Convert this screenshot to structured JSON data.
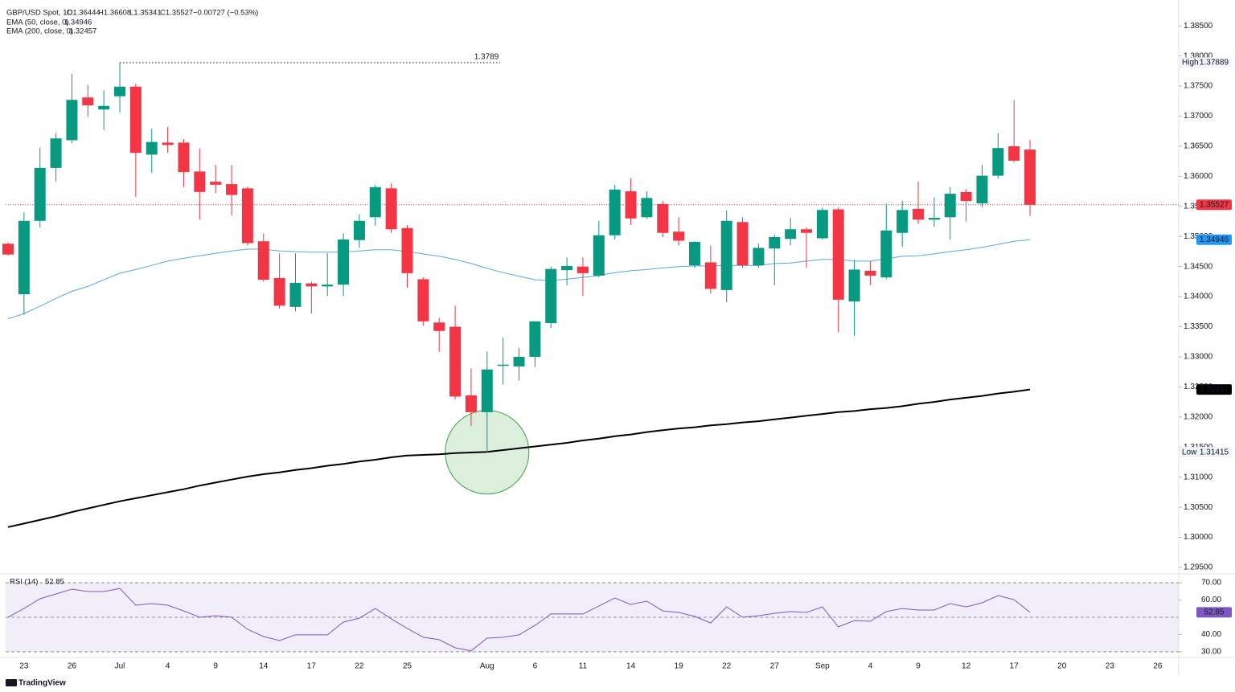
{
  "chart_data": {
    "type": "candlestick",
    "header": {
      "symbol": "GBP/USD Spot, 1D",
      "fields": [
        "O1.36444",
        "H1.36608",
        "L1.35341",
        "C1.35527",
        "−0.00727 (−0.53%)"
      ]
    },
    "categories": [
      null,
      "23",
      null,
      null,
      "26",
      null,
      null,
      "Jul",
      null,
      null,
      "4",
      null,
      null,
      "9",
      null,
      null,
      "14",
      null,
      null,
      "17",
      null,
      null,
      "22",
      null,
      null,
      "25",
      null,
      null,
      null,
      null,
      "Aug",
      null,
      null,
      "6",
      null,
      null,
      "11",
      null,
      null,
      "14",
      null,
      null,
      "19",
      null,
      null,
      "22",
      null,
      null,
      "27",
      null,
      null,
      "Sep",
      null,
      null,
      "4",
      null,
      null,
      "9",
      null,
      null,
      "12",
      null,
      null,
      "17",
      null,
      null,
      "20",
      null,
      null,
      "23",
      null,
      null,
      "26",
      null
    ],
    "open": [
      1.3488,
      1.3404,
      1.3526,
      1.3614,
      1.366,
      1.3731,
      1.3711,
      1.3733,
      1.3749,
      1.3636,
      1.3656,
      1.3656,
      1.3608,
      1.3591,
      1.3587,
      1.358,
      1.3492,
      1.3431,
      1.3383,
      1.3422,
      1.3417,
      1.342,
      1.3494,
      1.3532,
      1.358,
      1.3514,
      1.3429,
      1.3357,
      1.335,
      1.3236,
      1.3208,
      1.3285,
      1.3284,
      1.33,
      1.3356,
      1.3444,
      1.345,
      1.3435,
      1.3502,
      1.3575,
      1.3532,
      1.3554,
      1.3508,
      1.3452,
      1.3457,
      1.3411,
      1.3524,
      1.3452,
      1.348,
      1.3496,
      1.3512,
      1.3497,
      1.3545,
      1.3392,
      1.3443,
      1.3432,
      1.3506,
      1.3546,
      1.3528,
      1.3532,
      1.3574,
      1.3555,
      1.3601,
      1.365,
      1.36444,
      null,
      null,
      null,
      null,
      null,
      null,
      null,
      null,
      null
    ],
    "high": [
      1.349,
      1.354,
      1.3648,
      1.3672,
      1.377,
      1.3752,
      1.3743,
      1.37889,
      1.3754,
      1.3679,
      1.3682,
      1.3662,
      1.3646,
      1.3619,
      1.3619,
      1.3583,
      1.3505,
      1.3472,
      1.3472,
      1.3425,
      1.3472,
      1.3505,
      1.3537,
      1.3586,
      1.3588,
      1.3519,
      1.3432,
      1.3365,
      1.3385,
      1.3281,
      1.3309,
      1.3332,
      1.3315,
      1.3359,
      1.345,
      1.3465,
      1.3465,
      1.3526,
      1.3586,
      1.3597,
      1.3575,
      1.3559,
      1.3532,
      1.3492,
      1.3485,
      1.3543,
      1.3532,
      1.3488,
      1.3503,
      1.3531,
      1.3515,
      1.3548,
      1.3548,
      1.3461,
      1.3459,
      1.3555,
      1.3559,
      1.3591,
      1.3565,
      1.3582,
      1.3579,
      1.3619,
      1.3672,
      1.3727,
      1.36608,
      null,
      null,
      null,
      null,
      null,
      null,
      null,
      null,
      null
    ],
    "low": [
      1.3468,
      1.337,
      1.3515,
      1.3592,
      1.3655,
      1.3699,
      1.3677,
      1.3706,
      1.3566,
      1.3606,
      1.3639,
      1.3582,
      1.3528,
      1.3572,
      1.3535,
      1.3485,
      1.3425,
      1.338,
      1.3376,
      1.3372,
      1.3401,
      1.3401,
      1.3481,
      1.3518,
      1.3506,
      1.3415,
      1.3352,
      1.3308,
      1.3229,
      1.3185,
      1.31415,
      1.3254,
      1.3261,
      1.3283,
      1.3348,
      1.3419,
      1.3401,
      1.3432,
      1.3495,
      1.3519,
      1.3529,
      1.3499,
      1.3485,
      1.3448,
      1.3405,
      1.3391,
      1.3448,
      1.3448,
      1.3419,
      1.3485,
      1.3448,
      1.3495,
      1.3341,
      1.3335,
      1.3419,
      1.3429,
      1.3483,
      1.3521,
      1.3516,
      1.3495,
      1.3525,
      1.3548,
      1.3596,
      1.3623,
      1.35341,
      null,
      null,
      null,
      null,
      null,
      null,
      null,
      null,
      null
    ],
    "close": [
      1.347,
      1.3526,
      1.3614,
      1.3663,
      1.3727,
      1.3718,
      1.3717,
      1.3749,
      1.3639,
      1.3657,
      1.3652,
      1.3607,
      1.3574,
      1.3586,
      1.3569,
      1.3489,
      1.3428,
      1.3385,
      1.3423,
      1.3417,
      1.342,
      1.3495,
      1.3526,
      1.3582,
      1.3512,
      1.3439,
      1.3359,
      1.3343,
      1.3234,
      1.3208,
      1.3279,
      1.3287,
      1.33,
      1.3359,
      1.3446,
      1.3451,
      1.3439,
      1.3502,
      1.3578,
      1.353,
      1.3564,
      1.3506,
      1.3493,
      1.3491,
      1.3413,
      1.3526,
      1.3452,
      1.3481,
      1.3499,
      1.3512,
      1.3506,
      1.3544,
      1.3395,
      1.3445,
      1.3435,
      1.351,
      1.3544,
      1.3528,
      1.3531,
      1.3571,
      1.3559,
      1.3601,
      1.3647,
      1.3626,
      1.35527,
      null,
      null,
      null,
      null,
      null,
      null,
      null,
      null,
      null
    ],
    "up_color": "#089981",
    "down_color": "#f23645",
    "overlays": [
      {
        "name": "EMA (50, close, 0)",
        "color": "#5aa6e0",
        "values": [
          1.3363,
          1.3372,
          1.3384,
          1.3397,
          1.3409,
          1.3417,
          1.3428,
          1.3439,
          1.3445,
          1.3452,
          1.3459,
          1.3464,
          1.3468,
          1.3472,
          1.3476,
          1.3479,
          1.3479,
          1.3476,
          1.3475,
          1.3474,
          1.3474,
          1.3474,
          1.3476,
          1.3478,
          1.3478,
          1.3475,
          1.3471,
          1.3467,
          1.3462,
          1.3455,
          1.3447,
          1.344,
          1.3434,
          1.3428,
          1.3427,
          1.3429,
          1.3432,
          1.3435,
          1.344,
          1.3443,
          1.3445,
          1.3448,
          1.345,
          1.3451,
          1.3451,
          1.3452,
          1.3452,
          1.3452,
          1.3455,
          1.3456,
          1.3459,
          1.3462,
          1.3462,
          1.3459,
          1.3459,
          1.3463,
          1.3467,
          1.3468,
          1.3471,
          1.3475,
          1.3478,
          1.3482,
          1.3487,
          1.3492,
          1.34946,
          null,
          null,
          null,
          null,
          null,
          null,
          null,
          null,
          null
        ]
      },
      {
        "name": "EMA (200, close, 0)",
        "color": "#000000",
        "values": [
          1.3017,
          1.3023,
          1.3029,
          1.3035,
          1.3042,
          1.3048,
          1.3054,
          1.306,
          1.3065,
          1.307,
          1.3075,
          1.308,
          1.3086,
          1.3091,
          1.3096,
          1.3101,
          1.3105,
          1.3108,
          1.3112,
          1.3115,
          1.3119,
          1.3122,
          1.3126,
          1.3129,
          1.3133,
          1.3136,
          1.3137,
          1.3138,
          1.314,
          1.3141,
          1.3142,
          1.3145,
          1.3148,
          1.3151,
          1.3154,
          1.3157,
          1.3161,
          1.3164,
          1.3168,
          1.3171,
          1.3175,
          1.3178,
          1.3181,
          1.3183,
          1.3186,
          1.3188,
          1.3191,
          1.3193,
          1.3196,
          1.3199,
          1.3202,
          1.3205,
          1.3208,
          1.321,
          1.3213,
          1.3215,
          1.3218,
          1.3222,
          1.3225,
          1.3229,
          1.3232,
          1.3235,
          1.3239,
          1.3242,
          1.32457,
          null,
          null,
          null,
          null,
          null,
          null,
          null,
          null,
          null
        ]
      }
    ],
    "ylim": [
      1.2942,
      1.3893
    ],
    "yticks": [
      {
        "value": 1.385,
        "label": "1.38500"
      },
      {
        "value": 1.38,
        "label": "1.38000"
      },
      {
        "value": 1.375,
        "label": "1.37500"
      },
      {
        "value": 1.37,
        "label": "1.37000"
      },
      {
        "value": 1.365,
        "label": "1.36500"
      },
      {
        "value": 1.36,
        "label": "1.36000"
      },
      {
        "value": 1.355,
        "label": "1.35500"
      },
      {
        "value": 1.35,
        "label": "1.35000"
      },
      {
        "value": 1.345,
        "label": "1.34500"
      },
      {
        "value": 1.34,
        "label": "1.34000"
      },
      {
        "value": 1.335,
        "label": "1.33500"
      },
      {
        "value": 1.33,
        "label": "1.33000"
      },
      {
        "value": 1.325,
        "label": "1.32500"
      },
      {
        "value": 1.32,
        "label": "1.32000"
      },
      {
        "value": 1.315,
        "label": "1.31500"
      },
      {
        "value": 1.31,
        "label": "1.31000"
      },
      {
        "value": 1.305,
        "label": "1.30500"
      },
      {
        "value": 1.3,
        "label": "1.30000"
      },
      {
        "value": 1.295,
        "label": "1.29500"
      }
    ],
    "extreme_labels": {
      "high": "High",
      "low": "Low"
    },
    "annotations": [
      {
        "value": 1.37889,
        "label": "1.3789"
      }
    ],
    "rsi": {
      "name": "RSI (14)",
      "color": "#7e57c2",
      "values": [
        50.0,
        55.1,
        60.7,
        63.5,
        66.3,
        64.9,
        64.9,
        66.7,
        57.0,
        57.9,
        57.0,
        53.7,
        50.0,
        50.9,
        50.0,
        43.0,
        38.8,
        36.5,
        39.8,
        39.8,
        39.8,
        47.2,
        49.5,
        55.1,
        49.1,
        43.5,
        38.4,
        37.0,
        32.3,
        30.5,
        37.9,
        38.4,
        39.8,
        45.3,
        51.9,
        51.9,
        51.9,
        56.5,
        61.2,
        57.4,
        59.3,
        53.7,
        52.8,
        50.5,
        46.7,
        56.0,
        50.0,
        50.9,
        52.3,
        53.3,
        52.8,
        56.0,
        44.4,
        48.1,
        47.7,
        53.3,
        55.1,
        54.2,
        54.2,
        57.9,
        56.0,
        58.4,
        62.6,
        60.2,
        52.85,
        null,
        null,
        null,
        null,
        null,
        null,
        null,
        null,
        null
      ],
      "ylim": [
        26.7,
        73.3
      ],
      "yticks": [
        {
          "value": 70,
          "label": "70.00"
        },
        {
          "value": 60,
          "label": "60.00"
        },
        {
          "value": 40,
          "label": "40.00"
        },
        {
          "value": 30,
          "label": "30.00"
        }
      ],
      "band": [
        30,
        70
      ],
      "midline": 50
    },
    "branding": "TradingView"
  }
}
